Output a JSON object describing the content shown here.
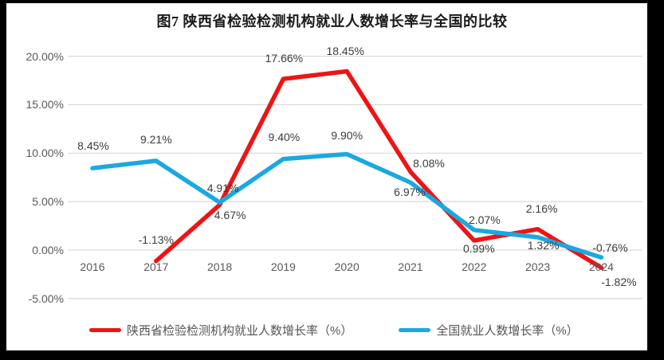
{
  "title": "图7 陕西省检验检测机构就业人数增长率与全国的比较",
  "colors": {
    "frame": "#000000",
    "panel": "#ffffff",
    "gridline": "#d9d9d9",
    "axis_text": "#595959",
    "data_label_text": "#3b3b3b",
    "series_red": "#ee1414",
    "series_blue": "#1ba8e1"
  },
  "chart_data": {
    "type": "line",
    "title": "图7 陕西省检验检测机构就业人数增长率与全国的比较",
    "categories": [
      "2016",
      "2017",
      "2018",
      "2019",
      "2020",
      "2021",
      "2022",
      "2023",
      "2024"
    ],
    "series": [
      {
        "name": "陕西省检验检测机构就业人数增长率（%）",
        "color": "#ee1414",
        "values": [
          null,
          -1.13,
          4.67,
          17.66,
          18.45,
          8.08,
          0.99,
          2.16,
          -1.82
        ],
        "labels": [
          "",
          "-1.13%",
          "4.67%",
          "17.66%",
          "18.45%",
          "8.08%",
          "0.99%",
          "2.16%",
          "-1.82%"
        ]
      },
      {
        "name": "全国就业人数增长率（%）",
        "color": "#1ba8e1",
        "values": [
          8.45,
          9.21,
          4.91,
          9.4,
          9.9,
          6.97,
          2.07,
          1.32,
          -0.76
        ],
        "labels": [
          "8.45%",
          "9.21%",
          "4.91%",
          "9.40%",
          "9.90%",
          "6.97%",
          "2.07%",
          "1.32%",
          "-0.76%"
        ]
      }
    ],
    "y_axis": {
      "tick_labels": [
        "20.00%",
        "15.00%",
        "10.00%",
        "5.00%",
        "0.00%",
        "-5.00%"
      ],
      "tick_values": [
        20,
        15,
        10,
        5,
        0,
        -5
      ],
      "ylim": [
        -5,
        20
      ]
    },
    "xlabel": "",
    "ylabel": "",
    "grid": true,
    "legend_position": "bottom"
  }
}
